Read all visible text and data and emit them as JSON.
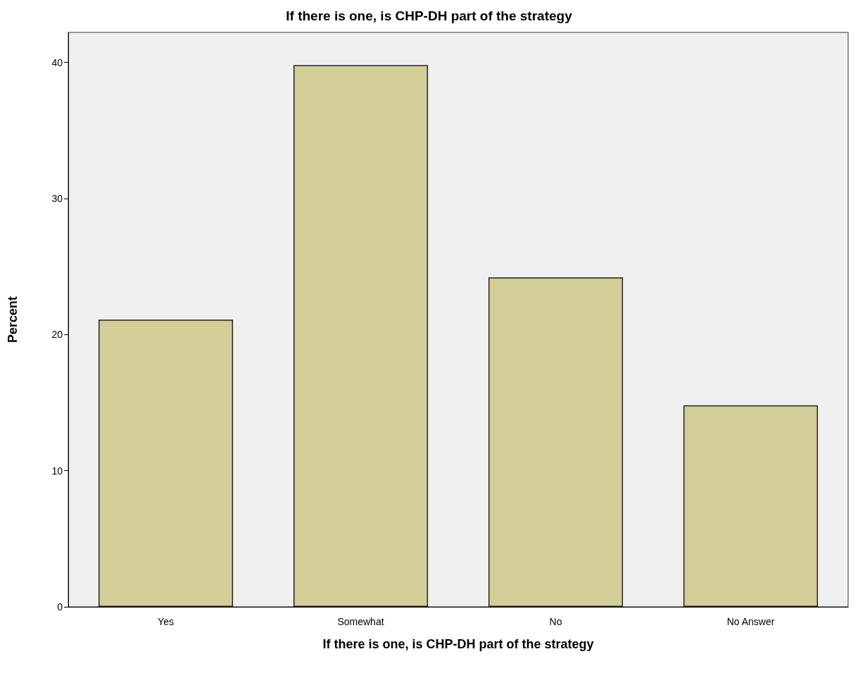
{
  "chart_data": {
    "type": "bar",
    "title": "If there is one, is CHP-DH part of the strategy",
    "xlabel": "If there is one, is CHP-DH part of the strategy",
    "ylabel": "Percent",
    "categories": [
      "Yes",
      "Somewhat",
      "No",
      "No Answer"
    ],
    "values": [
      21.1,
      39.8,
      24.2,
      14.8
    ],
    "color": "#d3ce98",
    "ylim": [
      0,
      42.2
    ],
    "yticks": [
      0,
      10,
      20,
      30,
      40
    ],
    "grid": false
  }
}
